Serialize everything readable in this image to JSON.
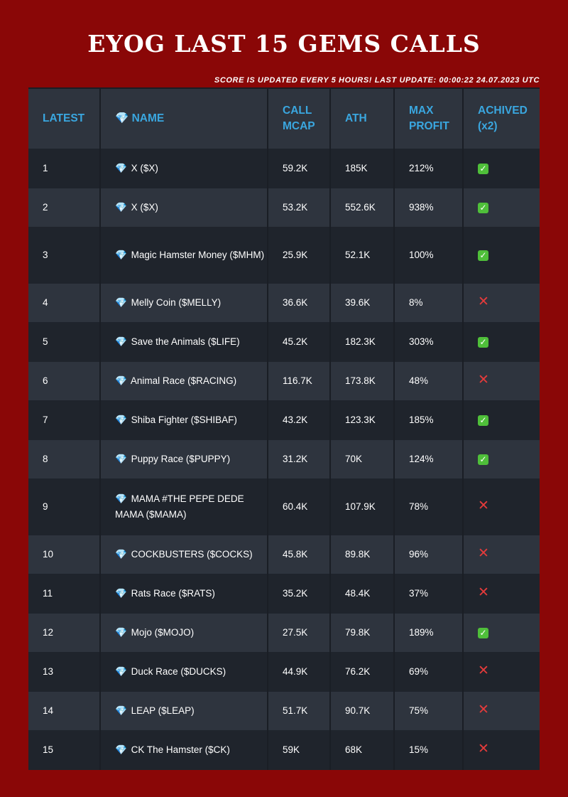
{
  "header": {
    "title": "EYOG LAST 15 GEMS CALLS",
    "subtitle": "SCORE IS UPDATED EVERY 5 HOURS! LAST UPDATE: 00:00:22 24.07.2023 UTC"
  },
  "table": {
    "columns": {
      "latest": "LATEST",
      "name": "💎 NAME",
      "call_mcap": "CALL MCAP",
      "ath": "ATH",
      "max_profit": "MAX PROFIT",
      "achived": "ACHIVED (x2)"
    },
    "gem_icon": "💎",
    "rows": [
      {
        "latest": "1",
        "name": "X ($X)",
        "call_mcap": "59.2K",
        "ath": "185K",
        "max_profit": "212%",
        "achived": true
      },
      {
        "latest": "2",
        "name": "X ($X)",
        "call_mcap": "53.2K",
        "ath": "552.6K",
        "max_profit": "938%",
        "achived": true
      },
      {
        "latest": "3",
        "name": "Magic Hamster Money ($MHM)",
        "call_mcap": "25.9K",
        "ath": "52.1K",
        "max_profit": "100%",
        "achived": true
      },
      {
        "latest": "4",
        "name": "Melly Coin ($MELLY)",
        "call_mcap": "36.6K",
        "ath": "39.6K",
        "max_profit": "8%",
        "achived": false
      },
      {
        "latest": "5",
        "name": "Save the Animals ($LIFE)",
        "call_mcap": "45.2K",
        "ath": "182.3K",
        "max_profit": "303%",
        "achived": true
      },
      {
        "latest": "6",
        "name": "Animal Race ($RACING)",
        "call_mcap": "116.7K",
        "ath": "173.8K",
        "max_profit": "48%",
        "achived": false
      },
      {
        "latest": "7",
        "name": "Shiba Fighter ($SHIBAF)",
        "call_mcap": "43.2K",
        "ath": "123.3K",
        "max_profit": "185%",
        "achived": true
      },
      {
        "latest": "8",
        "name": "Puppy Race ($PUPPY)",
        "call_mcap": "31.2K",
        "ath": "70K",
        "max_profit": "124%",
        "achived": true
      },
      {
        "latest": "9",
        "name": "MAMA #THE PEPE DEDE MAMA ($MAMA)",
        "call_mcap": "60.4K",
        "ath": "107.9K",
        "max_profit": "78%",
        "achived": false
      },
      {
        "latest": "10",
        "name": "COCKBUSTERS ($COCKS)",
        "call_mcap": "45.8K",
        "ath": "89.8K",
        "max_profit": "96%",
        "achived": false
      },
      {
        "latest": "11",
        "name": "Rats Race ($RATS)",
        "call_mcap": "35.2K",
        "ath": "48.4K",
        "max_profit": "37%",
        "achived": false
      },
      {
        "latest": "12",
        "name": "Mojo ($MOJO)",
        "call_mcap": "27.5K",
        "ath": "79.8K",
        "max_profit": "189%",
        "achived": true
      },
      {
        "latest": "13",
        "name": "Duck Race ($DUCKS)",
        "call_mcap": "44.9K",
        "ath": "76.2K",
        "max_profit": "69%",
        "achived": false
      },
      {
        "latest": "14",
        "name": "LEAP ($LEAP)",
        "call_mcap": "51.7K",
        "ath": "90.7K",
        "max_profit": "75%",
        "achived": false
      },
      {
        "latest": "15",
        "name": "CK The Hamster ($CK)",
        "call_mcap": "59K",
        "ath": "68K",
        "max_profit": "15%",
        "achived": false
      }
    ]
  },
  "icons": {
    "achived_true": "check-mark-icon",
    "achived_false": "cross-mark-icon"
  },
  "colors": {
    "background": "#8a0707",
    "header_text": "#3aa7e0",
    "check": "#4fbf3a",
    "cross": "#e53b3b"
  }
}
